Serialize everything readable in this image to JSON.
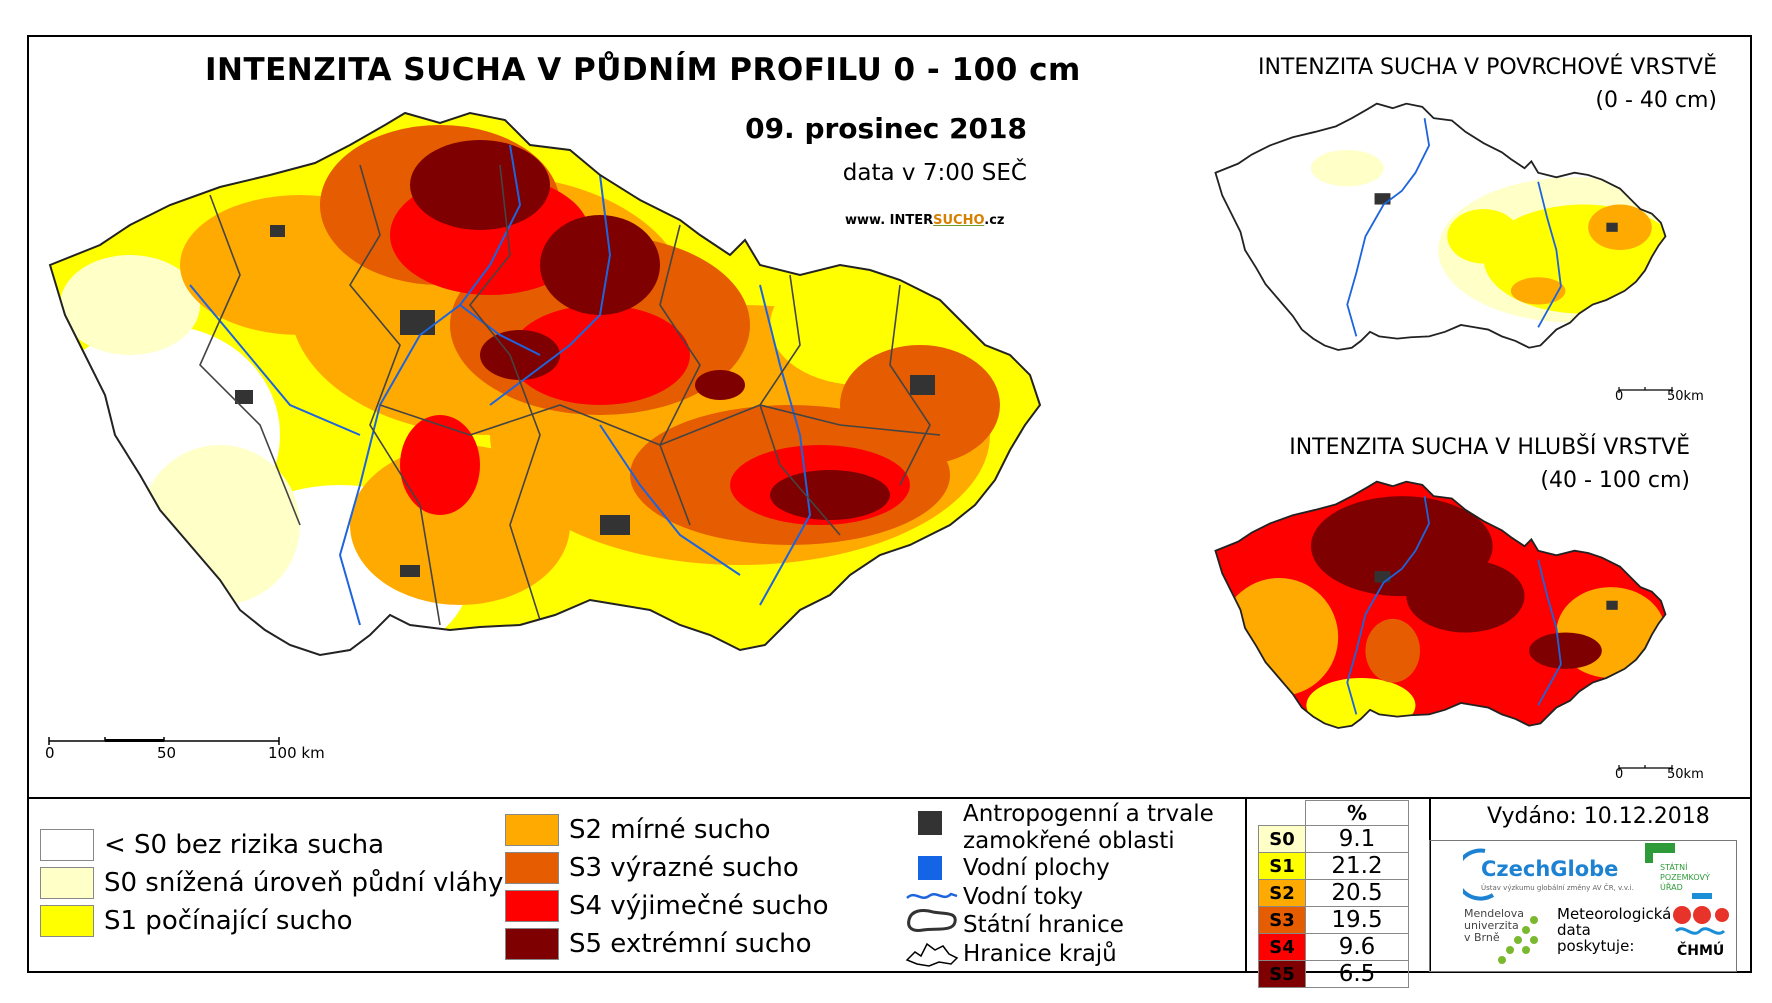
{
  "title": "INTENZITA SUCHA V PŮDNÍM PROFILU 0 - 100 cm",
  "date": "09. prosinec 2018",
  "data_time": "data v 7:00 SEČ",
  "website": {
    "prefix": "www. INTER",
    "accent": "SUCHO",
    "suffix": ".cz"
  },
  "inset_surface": {
    "title": "INTENZITA SUCHA V POVRCHOVÉ VRSTVĚ",
    "subtitle": "(0 - 40 cm)"
  },
  "inset_deep": {
    "title": "INTENZITA SUCHA V HLUBŠÍ VRSTVĚ",
    "subtitle": "(40 - 100 cm)"
  },
  "main_scale": {
    "labels": [
      "0",
      "50",
      "100 km"
    ]
  },
  "inset_scale": {
    "labels": [
      "0",
      "50km"
    ]
  },
  "legend": {
    "classes": [
      {
        "label": "< S0 bez rizika sucha",
        "color": "#ffffff"
      },
      {
        "label": "S0 snížená úroveň půdní vláhy",
        "color": "#ffffc8"
      },
      {
        "label": "S1 počínající sucho",
        "color": "#ffff00"
      },
      {
        "label": "S2 mírné sucho",
        "color": "#ffaa00"
      },
      {
        "label": "S3 výrazné sucho",
        "color": "#e65c00"
      },
      {
        "label": "S4 výjimečné sucho",
        "color": "#ff0000"
      },
      {
        "label": "S5 extrémní sucho",
        "color": "#7f0000"
      }
    ],
    "symbols": {
      "anthropogenic": "Antropogenní a trvale zamokřené oblasti",
      "water_bodies": "Vodní plochy",
      "rivers": "Vodní toky",
      "state_border": "Státní hranice",
      "region_border": "Hranice krajů"
    }
  },
  "percent_table": {
    "header": "%",
    "rows": [
      {
        "cls": "S0",
        "value": "9.1",
        "color": "#ffffc8"
      },
      {
        "cls": "S1",
        "value": "21.2",
        "color": "#ffff00"
      },
      {
        "cls": "S2",
        "value": "20.5",
        "color": "#ffaa00"
      },
      {
        "cls": "S3",
        "value": "19.5",
        "color": "#e65c00"
      },
      {
        "cls": "S4",
        "value": "9.6",
        "color": "#ff0000"
      },
      {
        "cls": "S5",
        "value": "6.5",
        "color": "#7f0000"
      }
    ]
  },
  "issued": "Vydáno: 10.12.2018",
  "logos": {
    "czechglobe": "CzechGlobe",
    "czechglobe_sub": "Ústav výzkumu globální změny AV ČR, v.v.i.",
    "spu": [
      "STÁTNÍ",
      "POZEMKOVÝ",
      "ÚŘAD"
    ],
    "mendel": [
      "Mendelova",
      "univerzita",
      "v Brně"
    ],
    "data_provider": [
      "Meteorologická",
      "data",
      "poskytuje:"
    ],
    "chmu": "ČHMÚ"
  }
}
